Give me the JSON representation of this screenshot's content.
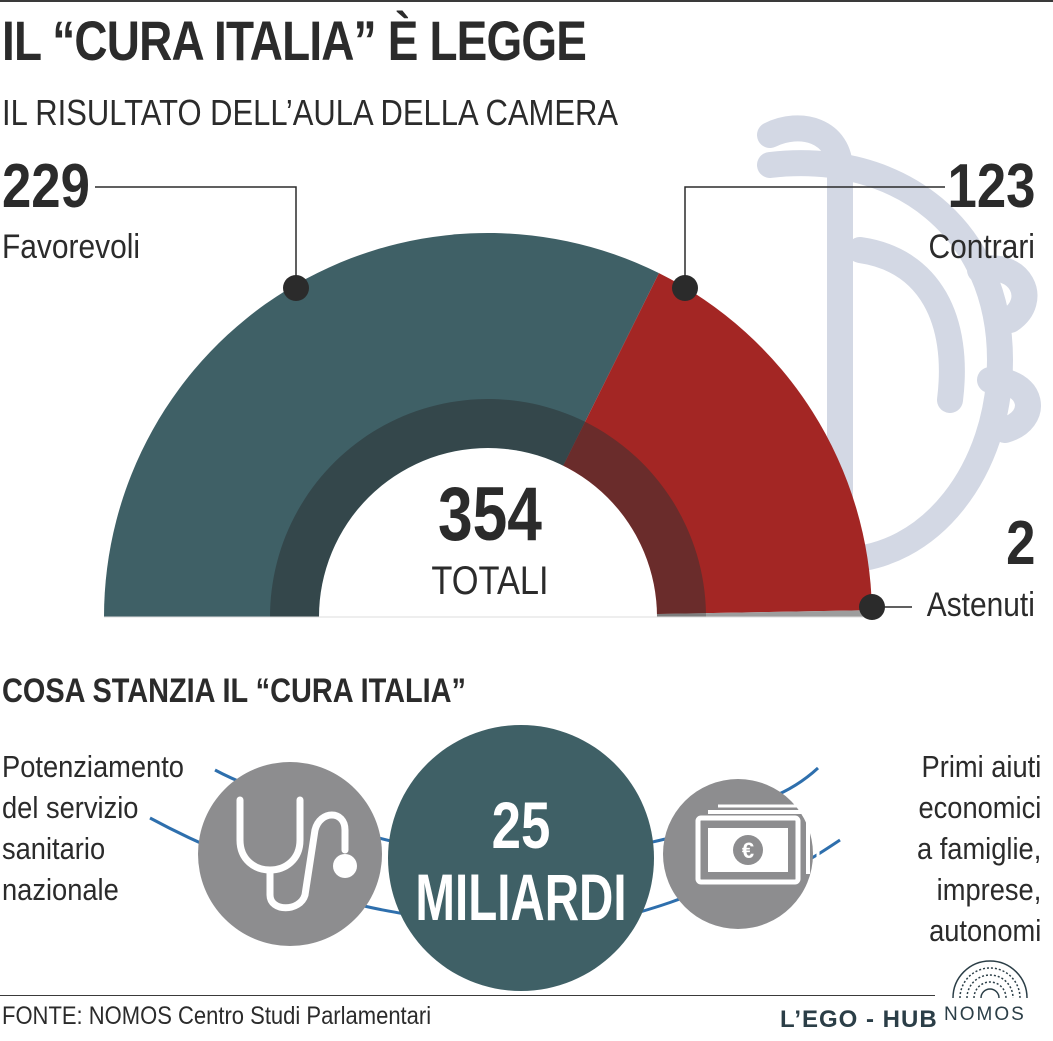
{
  "title": "IL “CURA ITALIA” È LEGGE",
  "subtitle": "IL RISULTATO DELL’AULA DELLA CAMERA",
  "chart_data": {
    "type": "pie",
    "title": "IL “CURA ITALIA” È LEGGE",
    "subtitle": "IL RISULTATO DELL’AULA DELLA CAMERA",
    "categories": [
      "Favorevoli",
      "Contrari",
      "Astenuti"
    ],
    "values": [
      229,
      123,
      2
    ],
    "colors": [
      "#3f6066",
      "#a32624",
      "#9d9d9d"
    ],
    "total": 354,
    "total_label": "TOTALI"
  },
  "section2": {
    "title": "COSA STANZIA IL “CURA ITALIA”",
    "amount_number": "25",
    "amount_unit": "MILIARDI",
    "left_lines": [
      "Potenziamento",
      "del servizio",
      "sanitario",
      "nazionale"
    ],
    "right_lines": [
      "Primi aiuti",
      "economici",
      "a famiglie,",
      "imprese,",
      "autonomi"
    ],
    "left_icon": "stethoscope-icon",
    "right_icon": "euro-banknote-icon"
  },
  "footer": {
    "source": "FONTE: NOMOS Centro Studi Parlamentari",
    "brand": "L’EGO - HUB",
    "logo_text": "NOMOS"
  }
}
